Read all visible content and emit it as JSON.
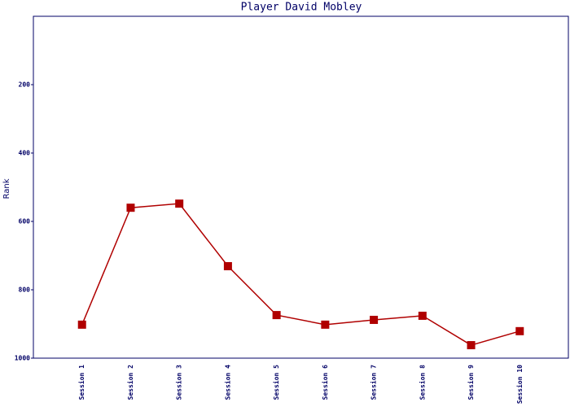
{
  "chart_data": {
    "type": "line",
    "title": "Player David Mobley",
    "y_label": "Rank",
    "categories": [
      "Session 1",
      "Session 2",
      "Session 3",
      "Session 4",
      "Session 5",
      "Session 6",
      "Session 7",
      "Session 8",
      "Session 9",
      "Session 10"
    ],
    "series": [
      {
        "name": "Rank",
        "color": "#b00000",
        "values": [
          902,
          560,
          548,
          731,
          874,
          902,
          888,
          876,
          962,
          921
        ]
      }
    ],
    "ylim": [
      1000,
      0
    ],
    "yticks": [
      200,
      400,
      600,
      800,
      1000
    ]
  }
}
